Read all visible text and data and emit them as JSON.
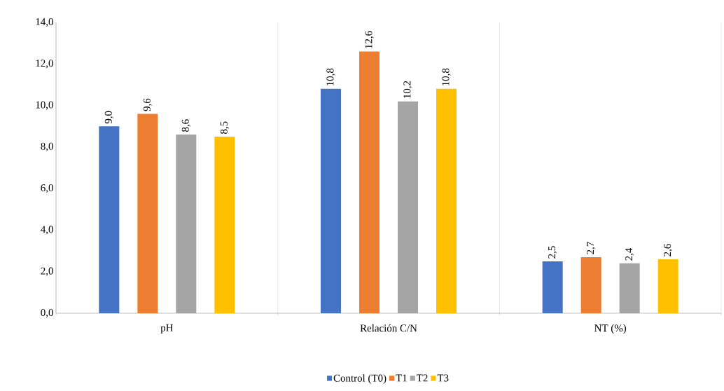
{
  "chart_data": {
    "type": "bar",
    "categories": [
      "pH",
      "Relación C/N",
      "NT (%)"
    ],
    "series": [
      {
        "name": "Control (T0)",
        "color": "#4472c4",
        "values": [
          9.0,
          10.8,
          2.5
        ],
        "value_labels": [
          "9,0",
          "10,8",
          "2,5"
        ]
      },
      {
        "name": "T1",
        "color": "#ed7d31",
        "values": [
          9.6,
          12.6,
          2.7
        ],
        "value_labels": [
          "9,6",
          "12,6",
          "2,7"
        ]
      },
      {
        "name": "T2",
        "color": "#a5a5a5",
        "values": [
          8.6,
          10.2,
          2.4
        ],
        "value_labels": [
          "8,6",
          "10,2",
          "2,4"
        ]
      },
      {
        "name": "T3",
        "color": "#ffc000",
        "values": [
          8.5,
          10.8,
          2.6
        ],
        "value_labels": [
          "8,5",
          "10,8",
          "2,6"
        ]
      }
    ],
    "ylim": [
      0,
      14
    ],
    "yticks": [
      {
        "value": 0,
        "label": "0,0"
      },
      {
        "value": 2,
        "label": "2,0"
      },
      {
        "value": 4,
        "label": "4,0"
      },
      {
        "value": 6,
        "label": "6,0"
      },
      {
        "value": 8,
        "label": "8,0"
      },
      {
        "value": 10,
        "label": "10,0"
      },
      {
        "value": 12,
        "label": "12,0"
      },
      {
        "value": 14,
        "label": "14,0"
      }
    ],
    "grid": "x",
    "legend": "bottom"
  }
}
